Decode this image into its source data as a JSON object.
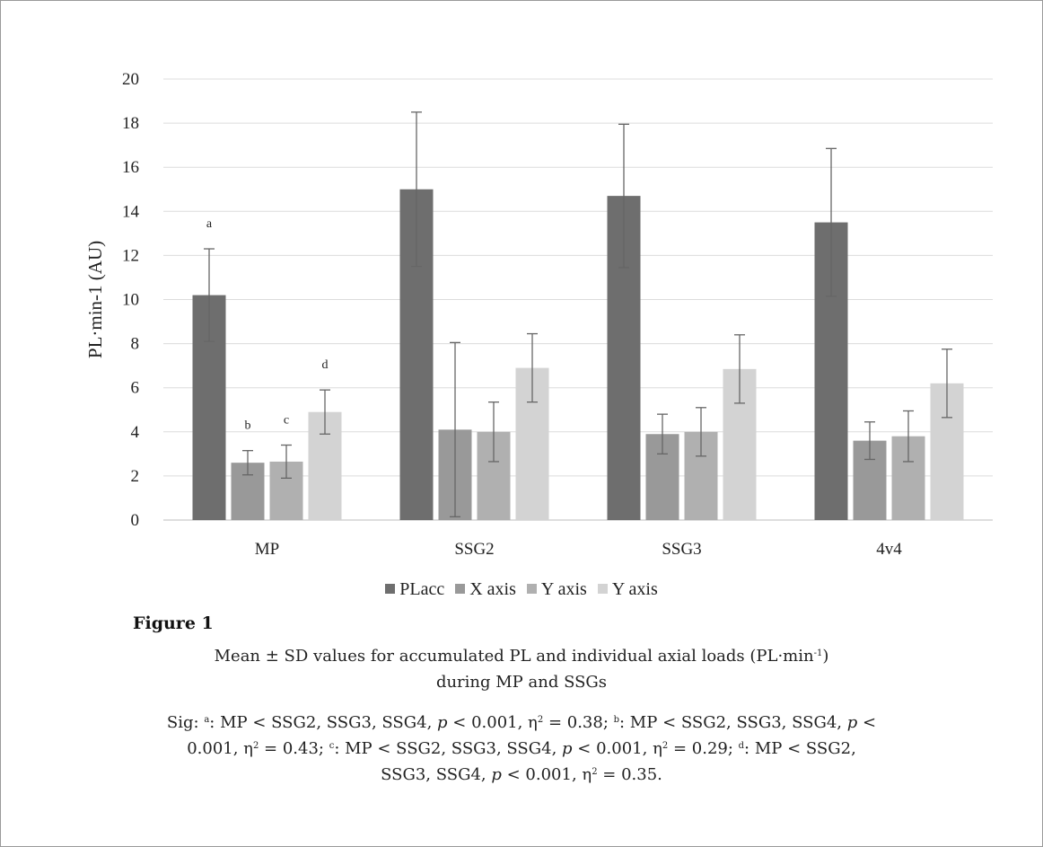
{
  "chart_data": {
    "type": "bar",
    "ylabel": "PL·min-1 (AU)",
    "ylim": [
      0,
      20
    ],
    "yticks": [
      0,
      2,
      4,
      6,
      8,
      10,
      12,
      14,
      16,
      18,
      20
    ],
    "grid": true,
    "legend_position": "bottom",
    "categories": [
      "MP",
      "SSG2",
      "SSG3",
      "4v4"
    ],
    "series": [
      {
        "name": "PLacc",
        "color": "#6e6e6e",
        "values": [
          10.2,
          15.0,
          14.7,
          13.5
        ],
        "errors": [
          2.1,
          3.5,
          3.25,
          3.35
        ]
      },
      {
        "name": "X axis",
        "color": "#999999",
        "values": [
          2.6,
          4.1,
          3.9,
          3.6
        ],
        "errors": [
          0.55,
          3.95,
          0.9,
          0.85
        ]
      },
      {
        "name": "Y axis",
        "color": "#b0b0b0",
        "values": [
          2.65,
          4.0,
          4.0,
          3.8
        ],
        "errors": [
          0.75,
          1.35,
          1.1,
          1.15
        ]
      },
      {
        "name": "Y axis",
        "color": "#d3d3d3",
        "values": [
          4.9,
          6.9,
          6.85,
          6.2
        ],
        "errors": [
          1.0,
          1.55,
          1.55,
          1.55
        ]
      }
    ],
    "annotations": [
      {
        "category": "MP",
        "series": 0,
        "label": "a"
      },
      {
        "category": "MP",
        "series": 1,
        "label": "b"
      },
      {
        "category": "MP",
        "series": 2,
        "label": "c"
      },
      {
        "category": "MP",
        "series": 3,
        "label": "d"
      }
    ]
  },
  "figure": {
    "label": "Figure 1",
    "title_line1_a": "Mean ± SD values for accumulated PL and individual axial loads (PL·min",
    "title_line1_sup": "-1",
    "title_line1_b": ")",
    "title_line2": "during MP and SSGs",
    "sig": {
      "prefix": "Sig: ",
      "a_sup": "a",
      "a_text": ": MP < SSG2, SSG3, SSG4, ",
      "p": "p",
      "a_rest": " < 0.001, η",
      "sq": "2",
      "a_end": " = 0.38; ",
      "b_sup": "b",
      "b_text": ": MP < SSG2, SSG3, SSG4, ",
      "b_rest_1": " <",
      "b_rest_2": "0.001, η",
      "b_end": " = 0.43; ",
      "c_sup": "c",
      "c_text": ": MP < SSG2, SSG3, SSG4, ",
      "c_rest": " < 0.001, η",
      "c_end": " = 0.29; ",
      "d_sup": "d",
      "d_text": ": MP < SSG2,",
      "d_line3": "SSG3, SSG4, ",
      "d_rest": " < 0.001, η",
      "d_end": " = 0.35."
    }
  }
}
